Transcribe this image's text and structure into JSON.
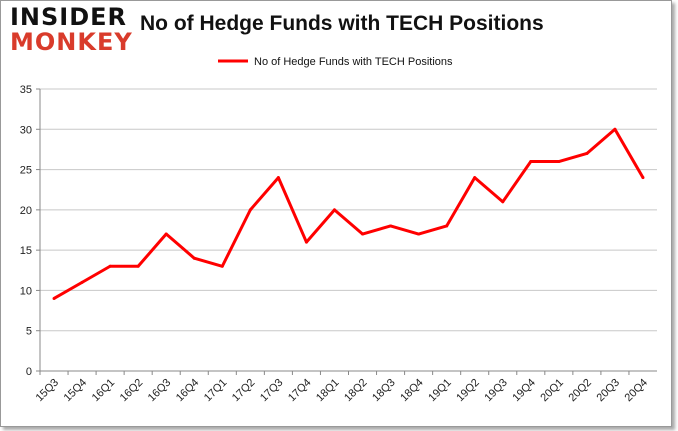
{
  "logo": {
    "line1": "INSIDER",
    "line2": "MONKEY"
  },
  "chart_data": {
    "type": "line",
    "title": "No of Hedge Funds with TECH Positions",
    "categories": [
      "15Q3",
      "15Q4",
      "16Q1",
      "16Q2",
      "16Q3",
      "16Q4",
      "17Q1",
      "17Q2",
      "17Q3",
      "17Q4",
      "18Q1",
      "18Q2",
      "18Q3",
      "18Q4",
      "19Q1",
      "19Q2",
      "19Q3",
      "19Q4",
      "20Q1",
      "20Q2",
      "20Q3",
      "20Q4"
    ],
    "series": [
      {
        "name": "No of Hedge Funds with TECH Positions",
        "values": [
          9,
          11,
          13,
          13,
          17,
          14,
          13,
          20,
          24,
          16,
          20,
          17,
          18,
          17,
          18,
          24,
          21,
          26,
          26,
          27,
          30,
          24
        ],
        "color": "#ff0000"
      }
    ],
    "ylim": [
      0,
      35
    ],
    "yticks": [
      0,
      5,
      10,
      15,
      20,
      25,
      30,
      35
    ],
    "grid": true,
    "legend": "top-center",
    "xlabel": "",
    "ylabel": ""
  }
}
